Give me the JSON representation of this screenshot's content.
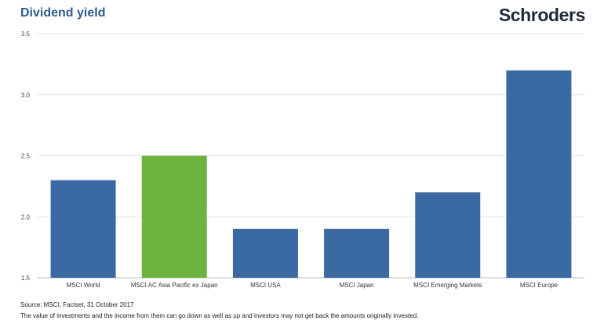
{
  "header": {
    "title": "Dividend yield",
    "brand": "Schroders"
  },
  "footer": {
    "source": "Source: MSCI, Factset, 31 October 2017",
    "disclaimer": "The value of investments and the income from them can go down as well as up and investors may not get back the amounts originally invested."
  },
  "chart_data": {
    "type": "bar",
    "title": "Dividend yield",
    "categories": [
      "MSCI World",
      "MSCI AC Asia Pacific ex Japan",
      "MSCI USA",
      "MSCI Japan",
      "MSCI Emerging Markets",
      "MSCI Europe"
    ],
    "values": [
      2.3,
      2.5,
      1.9,
      1.9,
      2.2,
      3.2
    ],
    "colors": [
      "#3b6aa3",
      "#6db33f",
      "#3b6aa3",
      "#3b6aa3",
      "#3b6aa3",
      "#3b6aa3"
    ],
    "ylim": [
      1.5,
      3.5
    ],
    "yticks": [
      "1.5",
      "2.0",
      "2.5",
      "3.0",
      "3.5"
    ],
    "grid": true,
    "legend": "none"
  }
}
